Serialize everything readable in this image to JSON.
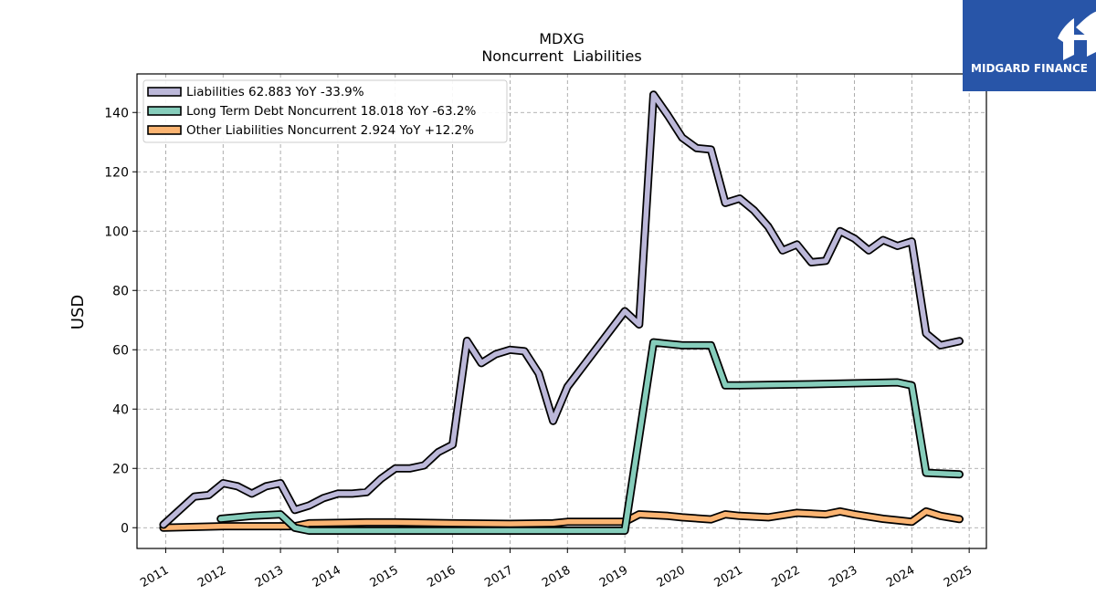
{
  "chart_data": {
    "type": "line",
    "title": "MDXG",
    "subtitle": "Noncurrent  Liabilities",
    "ylabel": "USD",
    "xlabel": "",
    "xlim": [
      2010.5,
      2025.3
    ],
    "ylim": [
      -7,
      153
    ],
    "x_ticks": [
      2011,
      2012,
      2013,
      2014,
      2015,
      2016,
      2017,
      2018,
      2019,
      2020,
      2021,
      2022,
      2023,
      2024,
      2025
    ],
    "y_ticks": [
      0,
      20,
      40,
      60,
      80,
      100,
      120,
      140
    ],
    "grid": true,
    "legend_position": "top-left",
    "series": [
      {
        "name": "Liabilities  62.883 YoY -33.9%",
        "color": "#bcb8d9",
        "points": [
          [
            2010.96,
            1
          ],
          [
            2011.5,
            10.5
          ],
          [
            2011.75,
            11
          ],
          [
            2012.0,
            15
          ],
          [
            2012.25,
            14
          ],
          [
            2012.5,
            11.5
          ],
          [
            2012.75,
            14
          ],
          [
            2013.0,
            15
          ],
          [
            2013.25,
            6
          ],
          [
            2013.5,
            7.5
          ],
          [
            2013.75,
            10
          ],
          [
            2014.0,
            11.5
          ],
          [
            2014.25,
            11.5
          ],
          [
            2014.5,
            12
          ],
          [
            2014.75,
            16.5
          ],
          [
            2015.0,
            20
          ],
          [
            2015.25,
            20
          ],
          [
            2015.5,
            21
          ],
          [
            2015.75,
            25.5
          ],
          [
            2016.0,
            28
          ],
          [
            2016.25,
            63
          ],
          [
            2016.5,
            55.5
          ],
          [
            2016.75,
            58.5
          ],
          [
            2017.0,
            60
          ],
          [
            2017.25,
            59.5
          ],
          [
            2017.5,
            52
          ],
          [
            2017.75,
            36
          ],
          [
            2018.0,
            47.5
          ],
          [
            2019.0,
            73
          ],
          [
            2019.25,
            68.5
          ],
          [
            2019.5,
            146
          ],
          [
            2019.75,
            139
          ],
          [
            2020.0,
            131.5
          ],
          [
            2020.25,
            128
          ],
          [
            2020.5,
            127.5
          ],
          [
            2020.75,
            109.5
          ],
          [
            2021.0,
            111
          ],
          [
            2021.25,
            107
          ],
          [
            2021.5,
            101.5
          ],
          [
            2021.75,
            93.5
          ],
          [
            2022.0,
            95.5
          ],
          [
            2022.25,
            89.5
          ],
          [
            2022.5,
            90
          ],
          [
            2022.75,
            100
          ],
          [
            2023.0,
            97.5
          ],
          [
            2023.25,
            93.5
          ],
          [
            2023.5,
            97
          ],
          [
            2023.75,
            95
          ],
          [
            2024.0,
            96.5
          ],
          [
            2024.25,
            65.5
          ],
          [
            2024.5,
            61.5
          ],
          [
            2024.83,
            62.9
          ]
        ]
      },
      {
        "name": "Long Term Debt Noncurrent  18.018 YoY -63.2%",
        "color": "#86cdbb",
        "points": [
          [
            2011.96,
            3
          ],
          [
            2012.5,
            4
          ],
          [
            2013.0,
            4.5
          ],
          [
            2013.25,
            0
          ],
          [
            2013.5,
            -1
          ],
          [
            2015.0,
            -1
          ],
          [
            2016.0,
            -1
          ],
          [
            2017.0,
            -1
          ],
          [
            2018.0,
            -1
          ],
          [
            2019.0,
            -1
          ],
          [
            2019.5,
            62.5
          ],
          [
            2019.75,
            62
          ],
          [
            2020.0,
            61.5
          ],
          [
            2020.5,
            61.5
          ],
          [
            2020.75,
            48
          ],
          [
            2021.0,
            48
          ],
          [
            2022.0,
            48.3
          ],
          [
            2023.0,
            48.7
          ],
          [
            2023.75,
            49
          ],
          [
            2024.0,
            48
          ],
          [
            2024.25,
            18.5
          ],
          [
            2024.83,
            18.0
          ]
        ]
      },
      {
        "name": "Other Liabilities Noncurrent  2.924 YoY +12.2%",
        "color": "#fbb472",
        "points": [
          [
            2010.96,
            0
          ],
          [
            2012.0,
            0.5
          ],
          [
            2013.0,
            0.5
          ],
          [
            2013.25,
            0.5
          ],
          [
            2013.5,
            1.5
          ],
          [
            2014.5,
            1.8
          ],
          [
            2015.0,
            1.8
          ],
          [
            2016.0,
            1.5
          ],
          [
            2017.0,
            1.3
          ],
          [
            2017.75,
            1.5
          ],
          [
            2018.0,
            2
          ],
          [
            2019.0,
            2
          ],
          [
            2019.25,
            4.5
          ],
          [
            2019.75,
            4.0
          ],
          [
            2020.0,
            3.5
          ],
          [
            2020.5,
            2.8
          ],
          [
            2020.75,
            4.5
          ],
          [
            2021.0,
            4.0
          ],
          [
            2021.5,
            3.5
          ],
          [
            2022.0,
            5
          ],
          [
            2022.5,
            4.5
          ],
          [
            2022.75,
            5.5
          ],
          [
            2023.0,
            4.5
          ],
          [
            2023.5,
            3
          ],
          [
            2023.75,
            2.5
          ],
          [
            2024.0,
            2.0
          ],
          [
            2024.25,
            5.5
          ],
          [
            2024.5,
            4.0
          ],
          [
            2024.83,
            2.9
          ]
        ]
      }
    ]
  },
  "logo": {
    "text": "MIDGARD FINANCE",
    "background": "#2855a8"
  }
}
